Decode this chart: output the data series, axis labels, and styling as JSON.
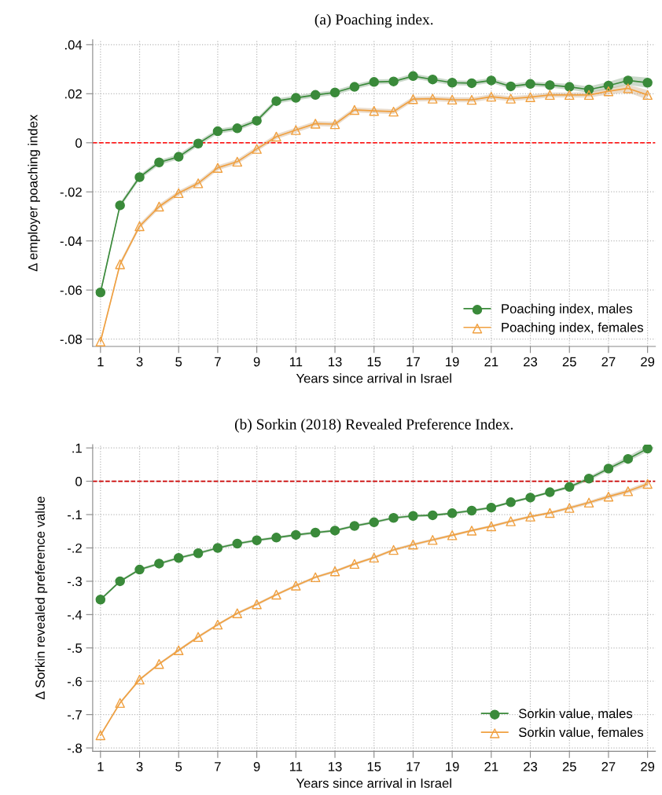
{
  "chart_data": [
    {
      "type": "line",
      "title": "(a) Poaching index.",
      "xlabel": "Years since arrival in Israel",
      "ylabel": "Δ employer poaching index",
      "x": [
        1,
        2,
        3,
        4,
        5,
        6,
        7,
        8,
        9,
        10,
        11,
        12,
        13,
        14,
        15,
        16,
        17,
        18,
        19,
        20,
        21,
        22,
        23,
        24,
        25,
        26,
        27,
        28,
        29
      ],
      "xlim": [
        0.6,
        29.4
      ],
      "xticks": [
        1,
        3,
        5,
        7,
        9,
        11,
        13,
        15,
        17,
        19,
        21,
        23,
        25,
        27,
        29
      ],
      "ylim": [
        -0.083,
        0.042
      ],
      "yticks": [
        {
          "value": 0.04,
          "label": ".04"
        },
        {
          "value": 0.02,
          "label": ".02"
        },
        0,
        {
          "value": -0.02,
          "label": "-.02"
        },
        {
          "value": -0.04,
          "label": "-.04"
        },
        {
          "value": -0.06,
          "label": "-.06"
        },
        {
          "value": -0.08,
          "label": "-.08"
        }
      ],
      "grid": true,
      "legend": "bottom right",
      "line_style": "solid",
      "ref_lines": [
        {
          "axis": "y",
          "value": 0,
          "label": null,
          "color": "#ff0000",
          "line_style": "dashed"
        }
      ],
      "series": [
        {
          "name": "Poaching index, males",
          "color": "#3a8a3a",
          "marker": "circle",
          "values": [
            -0.061,
            -0.0255,
            -0.014,
            -0.008,
            -0.0057,
            -0.0003,
            0.0047,
            0.0059,
            0.009,
            0.017,
            0.0183,
            0.0195,
            0.0205,
            0.0228,
            0.0248,
            0.025,
            0.0272,
            0.0258,
            0.0245,
            0.0243,
            0.0254,
            0.023,
            0.024,
            0.0235,
            0.0228,
            0.0217,
            0.0233,
            0.0254,
            0.0245
          ],
          "lower": [
            -0.062,
            -0.0265,
            -0.015,
            -0.009,
            -0.0067,
            -0.0013,
            0.0037,
            0.0049,
            0.008,
            0.016,
            0.0173,
            0.0185,
            0.0195,
            0.0218,
            0.0238,
            0.024,
            0.0262,
            0.0248,
            0.0235,
            0.0233,
            0.0244,
            0.022,
            0.023,
            0.0225,
            0.0216,
            0.0204,
            0.0218,
            0.0236,
            0.0224
          ],
          "upper": [
            -0.06,
            -0.0245,
            -0.013,
            -0.007,
            -0.0047,
            0.0007,
            0.0057,
            0.0069,
            0.01,
            0.018,
            0.0193,
            0.0205,
            0.0215,
            0.0238,
            0.0258,
            0.026,
            0.0282,
            0.0268,
            0.0255,
            0.0253,
            0.0264,
            0.024,
            0.025,
            0.0245,
            0.024,
            0.023,
            0.0248,
            0.0272,
            0.0266
          ]
        },
        {
          "name": "Poaching index, females",
          "color": "#f0a040",
          "marker": "triangle",
          "values": [
            -0.081,
            -0.0495,
            -0.034,
            -0.026,
            -0.0205,
            -0.0165,
            -0.0102,
            -0.0077,
            -0.0025,
            0.0025,
            0.0052,
            0.0078,
            0.0076,
            0.0134,
            0.013,
            0.0127,
            0.0178,
            0.018,
            0.0176,
            0.0175,
            0.0188,
            0.018,
            0.0186,
            0.0195,
            0.0195,
            0.0195,
            0.021,
            0.0222,
            0.0195
          ],
          "lower": [
            -0.082,
            -0.0505,
            -0.035,
            -0.027,
            -0.0215,
            -0.0175,
            -0.0112,
            -0.0087,
            -0.0035,
            0.0015,
            0.0042,
            0.0068,
            0.0066,
            0.0124,
            0.012,
            0.0117,
            0.0168,
            0.017,
            0.0166,
            0.0165,
            0.0178,
            0.017,
            0.0176,
            0.0185,
            0.0185,
            0.0184,
            0.0197,
            0.0206,
            0.0175
          ],
          "upper": [
            -0.08,
            -0.0485,
            -0.033,
            -0.025,
            -0.0195,
            -0.0155,
            -0.0092,
            -0.0067,
            -0.0015,
            0.0035,
            0.0062,
            0.0088,
            0.0086,
            0.0144,
            0.014,
            0.0137,
            0.0188,
            0.019,
            0.0186,
            0.0185,
            0.0198,
            0.019,
            0.0196,
            0.0205,
            0.0205,
            0.0206,
            0.0223,
            0.0238,
            0.0215
          ]
        }
      ]
    },
    {
      "type": "line",
      "title": "(b) Sorkin (2018) Revealed Preference Index.",
      "xlabel": "Years since arrival in Israel",
      "ylabel": "Δ Sorkin revealed preference value",
      "x": [
        1,
        2,
        3,
        4,
        5,
        6,
        7,
        8,
        9,
        10,
        11,
        12,
        13,
        14,
        15,
        16,
        17,
        18,
        19,
        20,
        21,
        22,
        23,
        24,
        25,
        26,
        27,
        28,
        29
      ],
      "xlim": [
        0.6,
        29.4
      ],
      "xticks": [
        1,
        3,
        5,
        7,
        9,
        11,
        13,
        15,
        17,
        19,
        21,
        23,
        25,
        27,
        29
      ],
      "ylim": [
        -0.81,
        0.11
      ],
      "yticks": [
        {
          "value": 0.1,
          "label": ".1"
        },
        0,
        {
          "value": -0.1,
          "label": "-.1"
        },
        {
          "value": -0.2,
          "label": "-.2"
        },
        {
          "value": -0.3,
          "label": "-.3"
        },
        {
          "value": -0.4,
          "label": "-.4"
        },
        {
          "value": -0.5,
          "label": "-.5"
        },
        {
          "value": -0.6,
          "label": "-.6"
        },
        {
          "value": -0.7,
          "label": "-.7"
        },
        {
          "value": -0.8,
          "label": "-.8"
        }
      ],
      "grid": true,
      "legend": "bottom right",
      "line_style": "solid",
      "ref_lines": [
        {
          "axis": "y",
          "value": 0,
          "label": null,
          "color": "#cc0000",
          "line_style": "dashed"
        }
      ],
      "series": [
        {
          "name": "Sorkin value, males",
          "color": "#3a8a3a",
          "marker": "circle",
          "values": [
            -0.355,
            -0.3,
            -0.265,
            -0.247,
            -0.23,
            -0.216,
            -0.2,
            -0.187,
            -0.177,
            -0.169,
            -0.161,
            -0.154,
            -0.148,
            -0.134,
            -0.123,
            -0.11,
            -0.104,
            -0.102,
            -0.096,
            -0.088,
            -0.079,
            -0.063,
            -0.049,
            -0.033,
            -0.017,
            0.008,
            0.038,
            0.067,
            0.098
          ],
          "lower": [
            -0.359,
            -0.304,
            -0.269,
            -0.251,
            -0.234,
            -0.22,
            -0.204,
            -0.191,
            -0.181,
            -0.173,
            -0.165,
            -0.158,
            -0.152,
            -0.138,
            -0.127,
            -0.114,
            -0.108,
            -0.106,
            -0.1,
            -0.092,
            -0.083,
            -0.067,
            -0.053,
            -0.037,
            -0.022,
            0.002,
            0.031,
            0.059,
            0.089
          ],
          "upper": [
            -0.351,
            -0.296,
            -0.261,
            -0.243,
            -0.226,
            -0.212,
            -0.196,
            -0.183,
            -0.173,
            -0.165,
            -0.157,
            -0.15,
            -0.144,
            -0.13,
            -0.119,
            -0.106,
            -0.1,
            -0.098,
            -0.092,
            -0.084,
            -0.075,
            -0.059,
            -0.045,
            -0.029,
            -0.012,
            0.014,
            0.045,
            0.075,
            0.107
          ]
        },
        {
          "name": "Sorkin value, females",
          "color": "#f0a040",
          "marker": "triangle",
          "values": [
            -0.762,
            -0.665,
            -0.595,
            -0.548,
            -0.507,
            -0.467,
            -0.43,
            -0.396,
            -0.369,
            -0.34,
            -0.313,
            -0.288,
            -0.27,
            -0.248,
            -0.229,
            -0.206,
            -0.19,
            -0.176,
            -0.162,
            -0.148,
            -0.135,
            -0.12,
            -0.106,
            -0.095,
            -0.08,
            -0.064,
            -0.046,
            -0.03,
            -0.008
          ],
          "lower": [
            -0.766,
            -0.669,
            -0.599,
            -0.552,
            -0.511,
            -0.471,
            -0.434,
            -0.4,
            -0.373,
            -0.344,
            -0.317,
            -0.292,
            -0.274,
            -0.252,
            -0.233,
            -0.21,
            -0.194,
            -0.18,
            -0.166,
            -0.152,
            -0.139,
            -0.124,
            -0.11,
            -0.099,
            -0.085,
            -0.069,
            -0.052,
            -0.036,
            -0.015
          ],
          "upper": [
            -0.758,
            -0.661,
            -0.591,
            -0.544,
            -0.503,
            -0.463,
            -0.426,
            -0.392,
            -0.365,
            -0.336,
            -0.309,
            -0.284,
            -0.266,
            -0.244,
            -0.225,
            -0.202,
            -0.186,
            -0.172,
            -0.158,
            -0.144,
            -0.131,
            -0.116,
            -0.102,
            -0.091,
            -0.075,
            -0.059,
            -0.04,
            -0.024,
            -0.001
          ]
        }
      ]
    }
  ]
}
